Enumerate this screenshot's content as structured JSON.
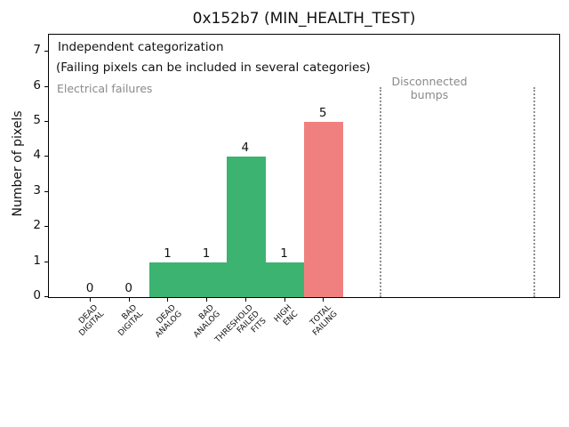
{
  "window": {
    "title": "0x152b7 (MIN_HEALTH_TEST)"
  },
  "chart_data": {
    "type": "bar",
    "title": "0x152b7 (MIN_HEALTH_TEST)",
    "xlabel": "",
    "ylabel": "Number of pixels",
    "ylim": [
      0,
      7.5
    ],
    "yticks": [
      "0",
      "1",
      "2",
      "3",
      "4",
      "5",
      "6",
      "7"
    ],
    "categories": [
      "DEAD\nDIGITAL",
      "BAD\nDIGITAL",
      "DEAD\nANALOG",
      "BAD\nANALOG",
      "THRESHOLD\nFAILED\nFITS",
      "HIGH\nENC",
      "TOTAL\nFAILING"
    ],
    "values": [
      0,
      0,
      1,
      1,
      4,
      1,
      5
    ],
    "bar_value_labels": [
      "0",
      "0",
      "1",
      "1",
      "4",
      "1",
      "5"
    ],
    "bar_colors": [
      "#3cb371",
      "#3cb371",
      "#3cb371",
      "#3cb371",
      "#3cb371",
      "#3cb371",
      "#f08080"
    ],
    "grid": false,
    "legend": null,
    "colors": {
      "category_bar": "#3cb371",
      "total_bar": "#f08080",
      "muted_text": "#8a8a8a",
      "separator_line": "#919191",
      "axis": "#000000"
    },
    "annotations": {
      "independent_line1": "Independent categorization",
      "independent_line2": "(Failing pixels can be included in several categories)",
      "electrical": "Electrical failures",
      "disconnected": "Disconnected\nbumps"
    },
    "separators": {
      "style": "dotted",
      "count": 2,
      "y_span": [
        0,
        6
      ]
    }
  }
}
